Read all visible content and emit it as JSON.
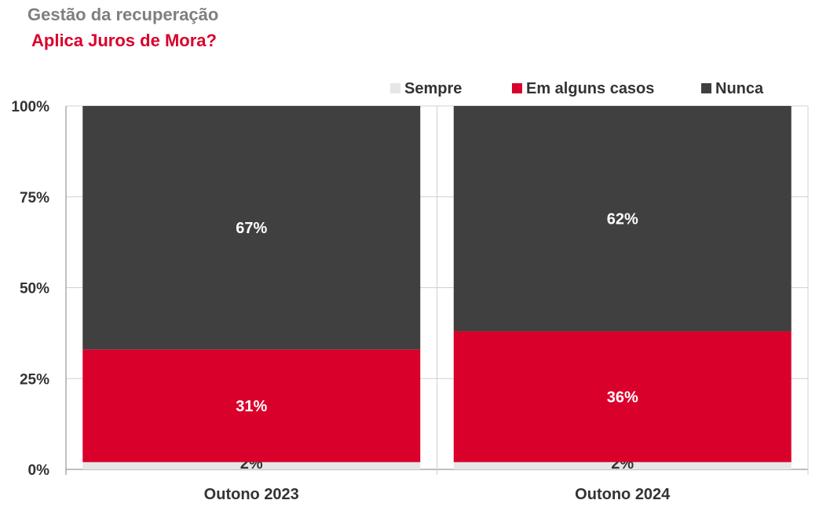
{
  "header": {
    "title": "Gestão da recuperação",
    "subtitle": "Aplica Juros de Mora?"
  },
  "colors": {
    "Sempre": "#e6e6e6",
    "Em alguns casos": "#d9002b",
    "Nunca": "#404040",
    "title": "#7f7f7f",
    "subtitle": "#d9002b"
  },
  "chart_data": {
    "type": "bar",
    "stacked": true,
    "percent": true,
    "categories": [
      "Outono 2023",
      "Outono 2024"
    ],
    "series": [
      {
        "name": "Sempre",
        "values": [
          2,
          2
        ],
        "labels": [
          "2%",
          "2%"
        ]
      },
      {
        "name": "Em alguns casos",
        "values": [
          31,
          36
        ],
        "labels": [
          "31%",
          "36%"
        ]
      },
      {
        "name": "Nunca",
        "values": [
          67,
          62
        ],
        "labels": [
          "67%",
          "62%"
        ]
      }
    ],
    "ylim": [
      0,
      100
    ],
    "yticks": [
      "0%",
      "25%",
      "50%",
      "75%",
      "100%"
    ],
    "grid": true,
    "legend": "top-right"
  }
}
